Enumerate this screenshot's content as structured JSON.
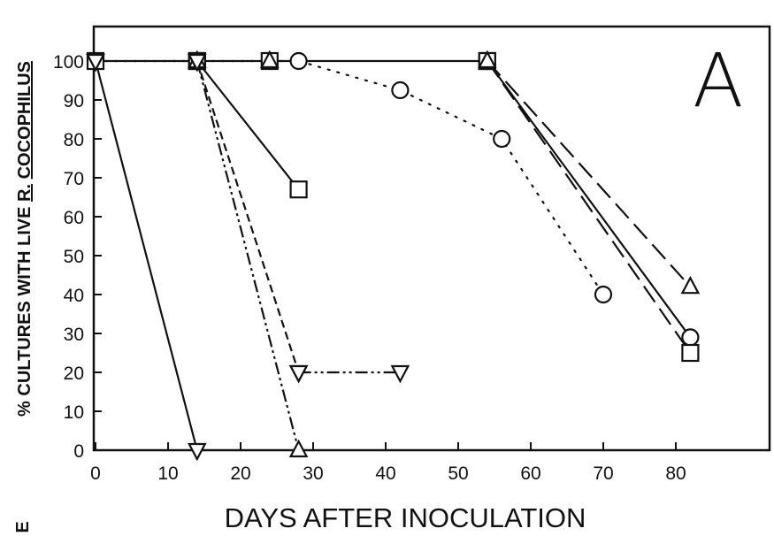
{
  "chart_data": {
    "type": "line",
    "panel_label": "A",
    "xlabel": "DAYS AFTER INOCULATION",
    "ylabel": {
      "prefix": "% CULTURES WITH LIVE ",
      "underlined": "R.",
      "gap": " ",
      "underlined2": "COCOPHILUS"
    },
    "corner_mark": "E",
    "xlim": [
      0,
      85
    ],
    "ylim": [
      0,
      105
    ],
    "x_ticks": [
      0,
      10,
      20,
      30,
      40,
      50,
      60,
      70,
      80
    ],
    "y_ticks": [
      0,
      10,
      20,
      30,
      40,
      50,
      60,
      70,
      80,
      90,
      100
    ],
    "grid": false,
    "legend": "none",
    "series": [
      {
        "marker": "circle",
        "line": "dotted",
        "points": [
          [
            0,
            100
          ],
          [
            14,
            100
          ],
          [
            24,
            100
          ],
          [
            28,
            100
          ],
          [
            42,
            92.5
          ],
          [
            56,
            80
          ],
          [
            70,
            40
          ]
        ]
      },
      {
        "marker": "circle",
        "line": "solid",
        "points": [
          [
            54,
            100
          ],
          [
            82,
            29
          ]
        ]
      },
      {
        "marker": "square",
        "line": "solid",
        "points": [
          [
            0,
            100
          ],
          [
            14,
            100
          ],
          [
            24,
            100
          ],
          [
            54,
            100
          ]
        ]
      },
      {
        "marker": "square",
        "line": "solid",
        "points": [
          [
            14,
            100
          ],
          [
            28,
            67
          ]
        ]
      },
      {
        "marker": "square",
        "line": "long-dash",
        "points": [
          [
            54,
            100
          ],
          [
            82,
            25
          ]
        ]
      },
      {
        "marker": "triangle-up",
        "line": "long-dash",
        "points": [
          [
            54,
            100
          ],
          [
            82,
            42
          ]
        ]
      },
      {
        "marker": "triangle-up",
        "line": "dash-dot-dot",
        "points": [
          [
            14,
            100
          ],
          [
            28,
            0
          ]
        ]
      },
      {
        "marker": "triangle-up",
        "line": "none",
        "points": [
          [
            24,
            100
          ]
        ]
      },
      {
        "marker": "triangle-down",
        "line": "solid",
        "points": [
          [
            0,
            100
          ],
          [
            14,
            0
          ]
        ]
      },
      {
        "marker": "triangle-down",
        "line": "short-dash",
        "points": [
          [
            14,
            100
          ],
          [
            28,
            20
          ]
        ]
      },
      {
        "marker": "triangle-down",
        "line": "dash-dot-dot",
        "points": [
          [
            28,
            20
          ],
          [
            42,
            20
          ]
        ]
      },
      {
        "marker": "triangle-down",
        "line": "none",
        "points": [
          [
            0,
            100
          ],
          [
            14,
            100
          ]
        ]
      }
    ]
  }
}
